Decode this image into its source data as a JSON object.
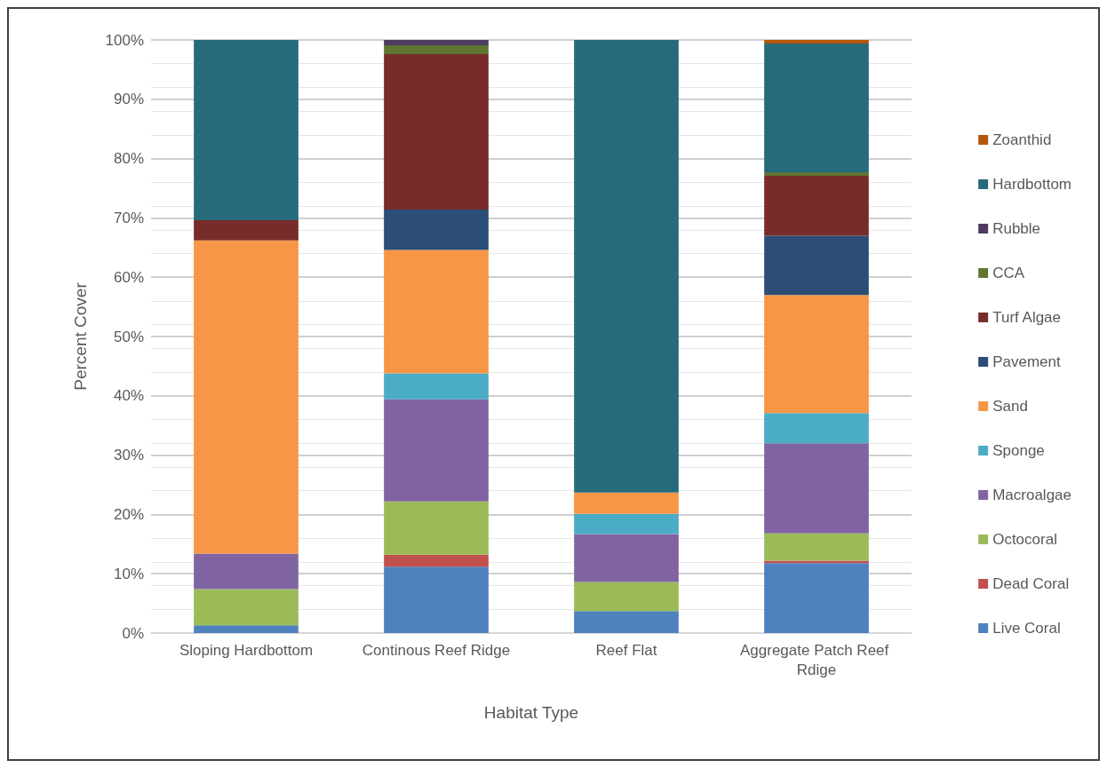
{
  "chart_data": {
    "type": "bar",
    "stacked": true,
    "xlabel": "Habitat Type",
    "ylabel": "Percent Cover",
    "categories": [
      "Sloping Hardbottom",
      "Continous Reef Ridge",
      "Reef Flat",
      "Aggregate Patch Reef Rdige"
    ],
    "series": [
      {
        "name": "Live Coral",
        "color": "#4f81bd",
        "values": [
          1.3,
          11.2,
          3.7,
          11.8
        ]
      },
      {
        "name": "Dead Coral",
        "color": "#c0504d",
        "values": [
          null,
          2.0,
          null,
          0.4
        ]
      },
      {
        "name": "Octocoral",
        "color": "#9bbb59",
        "values": [
          6.1,
          9.0,
          4.9,
          4.6
        ]
      },
      {
        "name": "Macroalgae",
        "color": "#8064a2",
        "values": [
          6.0,
          17.2,
          8.1,
          15.2
        ]
      },
      {
        "name": "Sponge",
        "color": "#4bacc6",
        "values": [
          null,
          4.4,
          3.4,
          5.1
        ]
      },
      {
        "name": "Sand",
        "color": "#f79646",
        "values": [
          52.8,
          20.8,
          3.6,
          19.9
        ]
      },
      {
        "name": "Pavement",
        "color": "#2c4d75",
        "values": [
          null,
          6.8,
          null,
          10.0
        ]
      },
      {
        "name": "Turf Algae",
        "color": "#772c2a",
        "values": [
          3.4,
          26.2,
          null,
          10.1
        ]
      },
      {
        "name": "CCA",
        "color": "#5f7530",
        "values": [
          null,
          1.5,
          null,
          0.6
        ]
      },
      {
        "name": "Rubble",
        "color": "#4d3b62",
        "values": [
          null,
          0.9,
          null,
          null
        ]
      },
      {
        "name": "Hardbottom",
        "color": "#276a7c",
        "values": [
          30.4,
          null,
          76.3,
          21.7
        ]
      },
      {
        "name": "Zoanthid",
        "color": "#b65708",
        "values": [
          null,
          null,
          null,
          0.6
        ]
      }
    ],
    "ylim": [
      0,
      100
    ],
    "yticks": [
      {
        "value": 0,
        "label": "0%"
      },
      {
        "value": 10,
        "label": "10%"
      },
      {
        "value": 20,
        "label": "20%"
      },
      {
        "value": 30,
        "label": "30%"
      },
      {
        "value": 40,
        "label": "40%"
      },
      {
        "value": 50,
        "label": "50%"
      },
      {
        "value": 60,
        "label": "60%"
      },
      {
        "value": 70,
        "label": "70%"
      },
      {
        "value": 80,
        "label": "80%"
      },
      {
        "value": 90,
        "label": "90%"
      },
      {
        "value": 100,
        "label": "100%"
      }
    ],
    "grid": "y",
    "legend": "right"
  }
}
